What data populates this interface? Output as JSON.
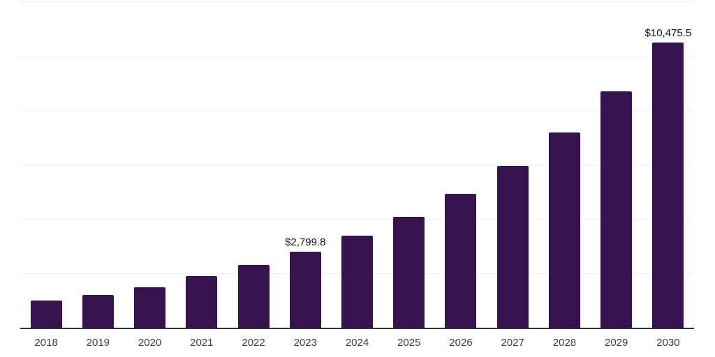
{
  "chart_data": {
    "type": "bar",
    "title": "",
    "xlabel": "",
    "ylabel": "",
    "categories": [
      "2018",
      "2019",
      "2020",
      "2021",
      "2022",
      "2023",
      "2024",
      "2025",
      "2026",
      "2027",
      "2028",
      "2029",
      "2030"
    ],
    "values": [
      1000,
      1210,
      1500,
      1890,
      2300,
      2799.8,
      3380,
      4080,
      4930,
      5950,
      7190,
      8680,
      10475.5
    ],
    "point_labels": [
      "",
      "",
      "",
      "",
      "",
      "$2,799.8",
      "",
      "",
      "",
      "",
      "",
      "",
      "$10,475.5"
    ],
    "ylim": [
      0,
      12000
    ],
    "gridline_interval": 2000,
    "grid": true,
    "legend": "none",
    "colors": {
      "bar": "#36124E",
      "axis": "#333333",
      "grid": "#F0F0F0",
      "tick_label": "#3D3D3D",
      "value_label": "#111111",
      "background": "#FFFFFF"
    }
  }
}
